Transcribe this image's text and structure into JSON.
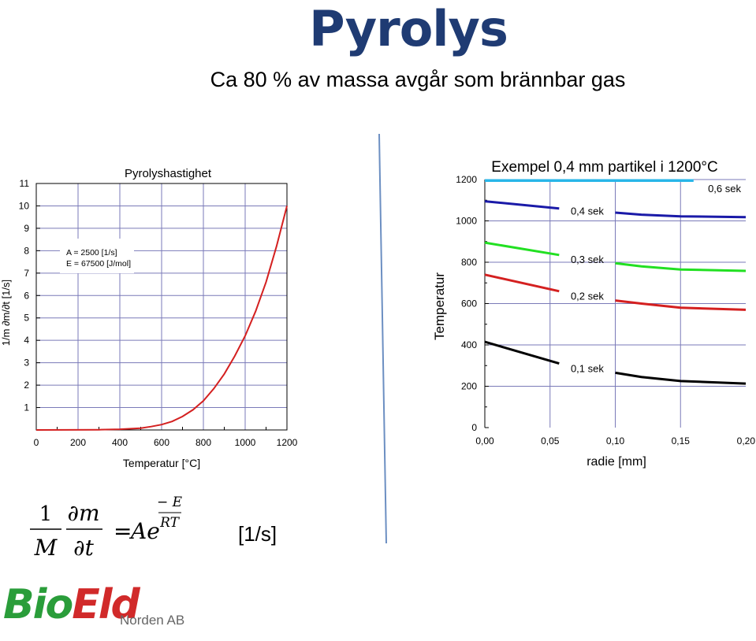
{
  "page": {
    "title": "Pyrolys",
    "subtitle": "Ca 80 % av massa avgår som brännbar gas",
    "equation": {
      "lhs_num1": "1",
      "lhs_den1": "M",
      "lhs_num2": "∂m",
      "lhs_den2": "∂t",
      "equals": "=",
      "rhs": "Ae",
      "exp_num": "− E",
      "exp_den": "RT",
      "unit": "[1/s]"
    },
    "logo": {
      "part1": "Bio",
      "part2": "Eld",
      "sub": "Norden AB"
    },
    "colors": {
      "title": "#1f3b73",
      "grid": "#7a7ab8",
      "divider": "#6c8fc2"
    }
  },
  "chart_data": [
    {
      "type": "line",
      "title": "Pyrolyshastighet",
      "xlabel": "Temperatur [°C]",
      "ylabel": "1/m ∂m/∂t [1/s]",
      "xlim": [
        0,
        1200
      ],
      "ylim": [
        0,
        11
      ],
      "xticks": [
        "0",
        "200",
        "400",
        "600",
        "800",
        "1000",
        "1200"
      ],
      "yticks": [
        "1",
        "2",
        "3",
        "4",
        "5",
        "6",
        "7",
        "8",
        "9",
        "10",
        "11"
      ],
      "annotation": [
        "A = 2500 [1/s]",
        "E = 67500 [J/mol]"
      ],
      "series": [
        {
          "color": "#d42020",
          "x": [
            0,
            300,
            400,
            500,
            550,
            600,
            650,
            700,
            750,
            800,
            850,
            900,
            950,
            1000,
            1050,
            1100,
            1150,
            1200
          ],
          "y": [
            0.0,
            0.01,
            0.03,
            0.08,
            0.15,
            0.24,
            0.38,
            0.6,
            0.9,
            1.3,
            1.85,
            2.5,
            3.3,
            4.2,
            5.3,
            6.6,
            8.2,
            10.0
          ]
        }
      ]
    },
    {
      "type": "line",
      "title": "Exempel 0,4 mm partikel i 1200°C",
      "xlabel": "radie [mm]",
      "ylabel": "Temperatur",
      "xlim": [
        0,
        0.2
      ],
      "ylim": [
        0,
        1200
      ],
      "xticks": [
        "0,00",
        "0,05",
        "0,10",
        "0,15",
        "0,20"
      ],
      "yticks": [
        "0",
        "200",
        "400",
        "600",
        "800",
        "1000",
        "1200"
      ],
      "series": [
        {
          "name": "0,6 sek",
          "color": "#29b6e8",
          "x": [
            0.0,
            0.16
          ],
          "y": [
            1195,
            1195
          ]
        },
        {
          "name": "0,4 sek",
          "color": "#1a1aa8",
          "x": [
            0.0,
            0.057,
            0.1,
            0.12,
            0.15,
            0.2
          ],
          "y": [
            1095,
            1060,
            1040,
            1030,
            1022,
            1018
          ]
        },
        {
          "name": "0,3 sek",
          "color": "#22e022",
          "x": [
            0.0,
            0.057,
            0.1,
            0.12,
            0.15,
            0.2
          ],
          "y": [
            895,
            835,
            795,
            780,
            765,
            758
          ]
        },
        {
          "name": "0,2 sek",
          "color": "#d42020",
          "x": [
            0.0,
            0.057,
            0.1,
            0.12,
            0.15,
            0.2
          ],
          "y": [
            740,
            660,
            615,
            600,
            580,
            570
          ]
        },
        {
          "name": "0,1 sek",
          "color": "#000000",
          "x": [
            0.0,
            0.057,
            0.1,
            0.12,
            0.15,
            0.2
          ],
          "y": [
            415,
            310,
            265,
            245,
            225,
            213
          ]
        }
      ]
    }
  ]
}
